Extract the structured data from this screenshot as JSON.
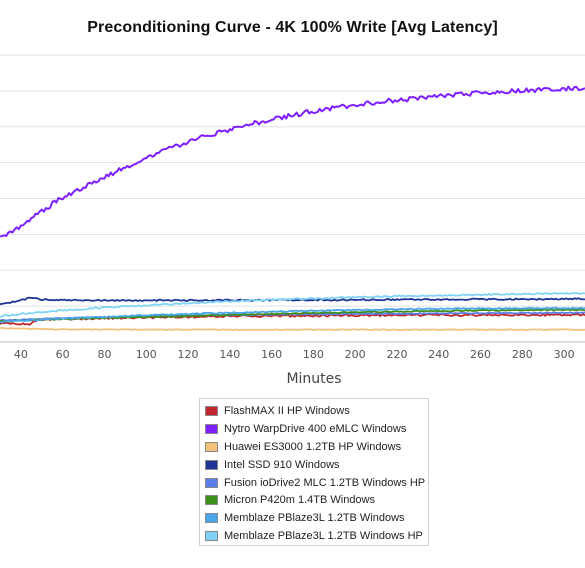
{
  "chart_data": {
    "type": "line",
    "title": "Preconditioning Curve - 4K 100% Write [Avg Latency]",
    "xlabel": "Minutes",
    "ylabel": "",
    "xlim": [
      30,
      310
    ],
    "ylim": [
      0,
      100
    ],
    "x_ticks": [
      40,
      60,
      80,
      100,
      120,
      140,
      160,
      180,
      200,
      220,
      240,
      260,
      280,
      300
    ],
    "grid": "horizontal",
    "legend_position": "bottom",
    "series": [
      {
        "name": "FlashMAX II HP Windows",
        "color": "#c0282d",
        "points": [
          [
            30,
            6.5
          ],
          [
            44,
            6.2
          ],
          [
            48,
            7.8
          ],
          [
            60,
            8.0
          ],
          [
            100,
            8.6
          ],
          [
            140,
            9.0
          ],
          [
            200,
            9.3
          ],
          [
            260,
            9.4
          ],
          [
            310,
            9.5
          ]
        ]
      },
      {
        "name": "Nytro WarpDrive 400 eMLC Windows",
        "color": "#7f1fff",
        "points": [
          [
            30,
            36
          ],
          [
            40,
            40.5
          ],
          [
            50,
            45.5
          ],
          [
            60,
            50.5
          ],
          [
            70,
            54
          ],
          [
            80,
            57.5
          ],
          [
            90,
            61
          ],
          [
            100,
            64
          ],
          [
            110,
            67
          ],
          [
            120,
            69.5
          ],
          [
            130,
            72
          ],
          [
            140,
            74
          ],
          [
            150,
            76
          ],
          [
            160,
            77.5
          ],
          [
            170,
            79
          ],
          [
            180,
            80.5
          ],
          [
            190,
            81.5
          ],
          [
            200,
            82.5
          ],
          [
            210,
            83.5
          ],
          [
            220,
            84.3
          ],
          [
            230,
            85
          ],
          [
            240,
            85.7
          ],
          [
            250,
            86.3
          ],
          [
            260,
            86.8
          ],
          [
            270,
            87.2
          ],
          [
            280,
            87.6
          ],
          [
            290,
            88
          ],
          [
            300,
            88.3
          ],
          [
            310,
            88.5
          ]
        ]
      },
      {
        "name": "Huawei ES3000 1.2TB HP Windows",
        "color": "#f2c27a",
        "points": [
          [
            30,
            4.8
          ],
          [
            60,
            4.4
          ],
          [
            120,
            4.3
          ],
          [
            200,
            4.3
          ],
          [
            310,
            4.3
          ]
        ]
      },
      {
        "name": "Intel SSD 910 Windows",
        "color": "#1d3596",
        "points": [
          [
            30,
            13
          ],
          [
            40,
            14.5
          ],
          [
            45,
            15.5
          ],
          [
            50,
            14.8
          ],
          [
            60,
            14.6
          ],
          [
            100,
            14.5
          ],
          [
            160,
            14.6
          ],
          [
            240,
            14.8
          ],
          [
            310,
            15
          ]
        ]
      },
      {
        "name": "Fusion ioDrive2 MLC 1.2TB Windows HP",
        "color": "#5a7de8",
        "points": [
          [
            30,
            7.5
          ],
          [
            60,
            8.3
          ],
          [
            100,
            9.0
          ],
          [
            160,
            9.6
          ],
          [
            220,
            9.9
          ],
          [
            310,
            10.2
          ]
        ]
      },
      {
        "name": "Micron P420m 1.4TB Windows",
        "color": "#3c8f1a",
        "points": [
          [
            30,
            7.2
          ],
          [
            60,
            8.0
          ],
          [
            100,
            8.7
          ],
          [
            140,
            9.4
          ],
          [
            180,
            10.1
          ],
          [
            220,
            10.6
          ],
          [
            260,
            11
          ],
          [
            310,
            11.2
          ]
        ]
      },
      {
        "name": "Memblaze PBlaze3L 1.2TB Windows",
        "color": "#4aa6e8",
        "points": [
          [
            30,
            7.0
          ],
          [
            60,
            8.2
          ],
          [
            100,
            9.3
          ],
          [
            140,
            10.2
          ],
          [
            180,
            10.9
          ],
          [
            220,
            11.4
          ],
          [
            260,
            11.7
          ],
          [
            310,
            11.8
          ]
        ]
      },
      {
        "name": "Memblaze PBlaze3L 1.2TB Windows HP",
        "color": "#7fd4f5",
        "points": [
          [
            30,
            9.0
          ],
          [
            50,
            10.5
          ],
          [
            80,
            12.0
          ],
          [
            110,
            13.2
          ],
          [
            140,
            14.2
          ],
          [
            170,
            15.0
          ],
          [
            200,
            15.6
          ],
          [
            230,
            16.1
          ],
          [
            260,
            16.5
          ],
          [
            290,
            16.8
          ],
          [
            310,
            17.0
          ]
        ]
      }
    ]
  }
}
